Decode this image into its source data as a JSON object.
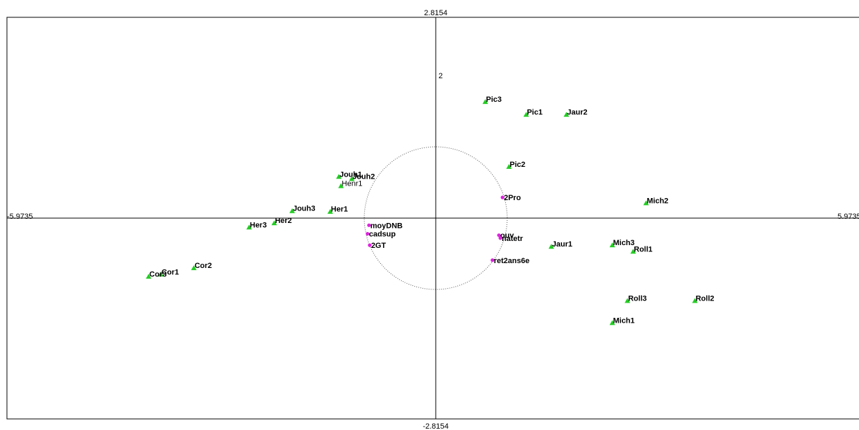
{
  "chart_data": {
    "type": "scatter",
    "title": "",
    "xlabel": "",
    "ylabel": "",
    "xlim": [
      -5.9735,
      5.9735
    ],
    "ylim": [
      -2.8154,
      2.8154
    ],
    "bound_labels": {
      "x_min": "-5.9735",
      "x_max": "5.9735",
      "y_max": "2.8154",
      "y_min": "-2.8154"
    },
    "tick_labels": [
      {
        "text": "2",
        "x": 0,
        "y": 2
      }
    ],
    "correlation_circle_radius": 1,
    "grid": false,
    "colors": {
      "individual_marker": "#22cc22",
      "variable_marker": "#dd22dd",
      "axis": "#000000",
      "circle": "#555555",
      "highlight_red": "#ff0000",
      "highlight_blue": "#0000ff",
      "normal_text": "#000000"
    },
    "individuals": [
      {
        "label": "Pic3",
        "x": 0.69,
        "y": 1.63
      },
      {
        "label": "Pic1",
        "x": 1.26,
        "y": 1.45
      },
      {
        "label": "Jaur2",
        "x": 1.82,
        "y": 1.45
      },
      {
        "label": "Pic2",
        "x": 1.02,
        "y": 0.72
      },
      {
        "label": "Mich2",
        "x": 2.93,
        "y": 0.21
      },
      {
        "label": "Jaur1",
        "x": 1.61,
        "y": -0.4
      },
      {
        "label": "Mich3",
        "x": 2.46,
        "y": -0.38
      },
      {
        "label": "Roll1",
        "x": 2.75,
        "y": -0.47
      },
      {
        "label": "Roll3",
        "x": 2.67,
        "y": -1.16
      },
      {
        "label": "Roll2",
        "x": 3.61,
        "y": -1.16
      },
      {
        "label": "Mich1",
        "x": 2.46,
        "y": -1.47
      },
      {
        "label": "Jouh1",
        "x": -1.35,
        "y": 0.58,
        "color": "red"
      },
      {
        "label": "Jouh2",
        "x": -1.17,
        "y": 0.55,
        "color": "blue"
      },
      {
        "label": "Henr1",
        "x": -1.32,
        "y": 0.45,
        "weight": "normal"
      },
      {
        "label": "Jouh3",
        "x": -2.0,
        "y": 0.1
      },
      {
        "label": "Her1",
        "x": -1.47,
        "y": 0.09
      },
      {
        "label": "Her2",
        "x": -2.25,
        "y": -0.07
      },
      {
        "label": "Her3",
        "x": -2.6,
        "y": -0.13
      },
      {
        "label": "Cor2",
        "x": -3.37,
        "y": -0.7
      },
      {
        "label": "Cor1",
        "x": -3.83,
        "y": -0.79
      },
      {
        "label": "Cor3",
        "x": -4.0,
        "y": -0.82
      }
    ],
    "variables": [
      {
        "label": "2Pro",
        "x": 0.93,
        "y": 0.29,
        "size": "large"
      },
      {
        "label": "moyDNB",
        "x": -0.93,
        "y": -0.1
      },
      {
        "label": "cadsup",
        "x": -0.95,
        "y": -0.22
      },
      {
        "label": "2GT",
        "x": -0.92,
        "y": -0.38
      },
      {
        "label": "ouv",
        "x": 0.88,
        "y": -0.24
      },
      {
        "label": "natetr",
        "x": 0.9,
        "y": -0.28
      },
      {
        "label": "ret2ans6e",
        "x": 0.79,
        "y": -0.59
      }
    ]
  }
}
